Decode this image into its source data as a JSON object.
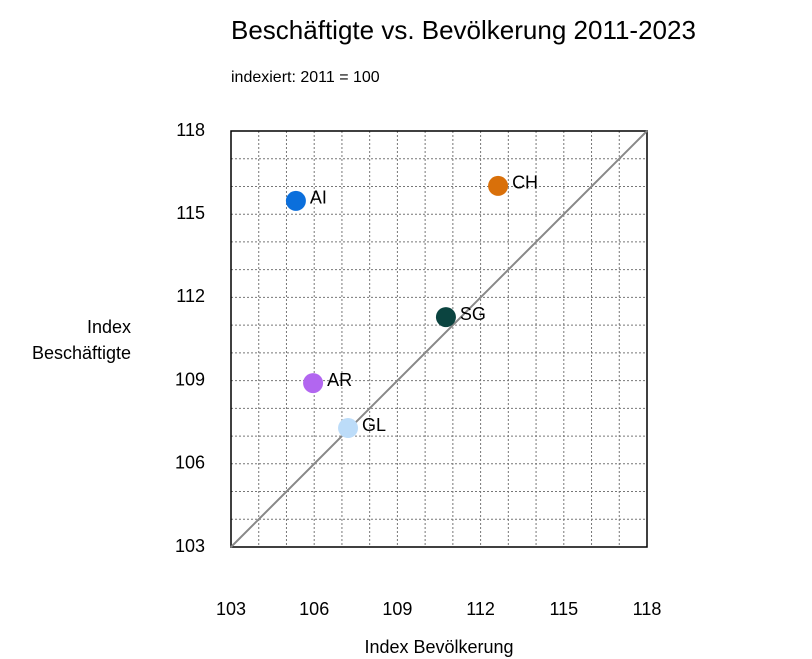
{
  "chart_data": {
    "type": "scatter",
    "title": "Beschäftigte vs. Bevölkerung 2011-2023",
    "subtitle": "indexiert: 2011 = 100",
    "x_label": "Index Bevölkerung",
    "y_label": [
      "Index",
      "Beschäftigte"
    ],
    "xlim": [
      103,
      118
    ],
    "ylim": [
      103,
      118
    ],
    "xticks": [
      103,
      106,
      109,
      112,
      115,
      118
    ],
    "yticks": [
      103,
      106,
      109,
      112,
      115,
      118
    ],
    "minor_xticks": [
      104,
      105,
      107,
      108,
      110,
      111,
      113,
      114,
      116,
      117
    ],
    "minor_yticks": [
      104,
      105,
      107,
      108,
      110,
      111,
      113,
      114,
      116,
      117
    ],
    "grid": true,
    "identity_line": true,
    "series": [
      {
        "name": "AI",
        "color": "#0b6fdc",
        "x": [
          105.34
        ],
        "values": [
          115.48
        ]
      },
      {
        "name": "CH",
        "color": "#d9700a",
        "x": [
          112.63
        ],
        "values": [
          116.02
        ]
      },
      {
        "name": "SG",
        "color": "#0b4440",
        "x": [
          110.75
        ],
        "values": [
          111.29
        ]
      },
      {
        "name": "AR",
        "color": "#b266f0",
        "x": [
          105.96
        ],
        "values": [
          108.91
        ]
      },
      {
        "name": "GL",
        "color": "#bcdcf9",
        "x": [
          107.22
        ],
        "values": [
          107.29
        ]
      }
    ]
  }
}
